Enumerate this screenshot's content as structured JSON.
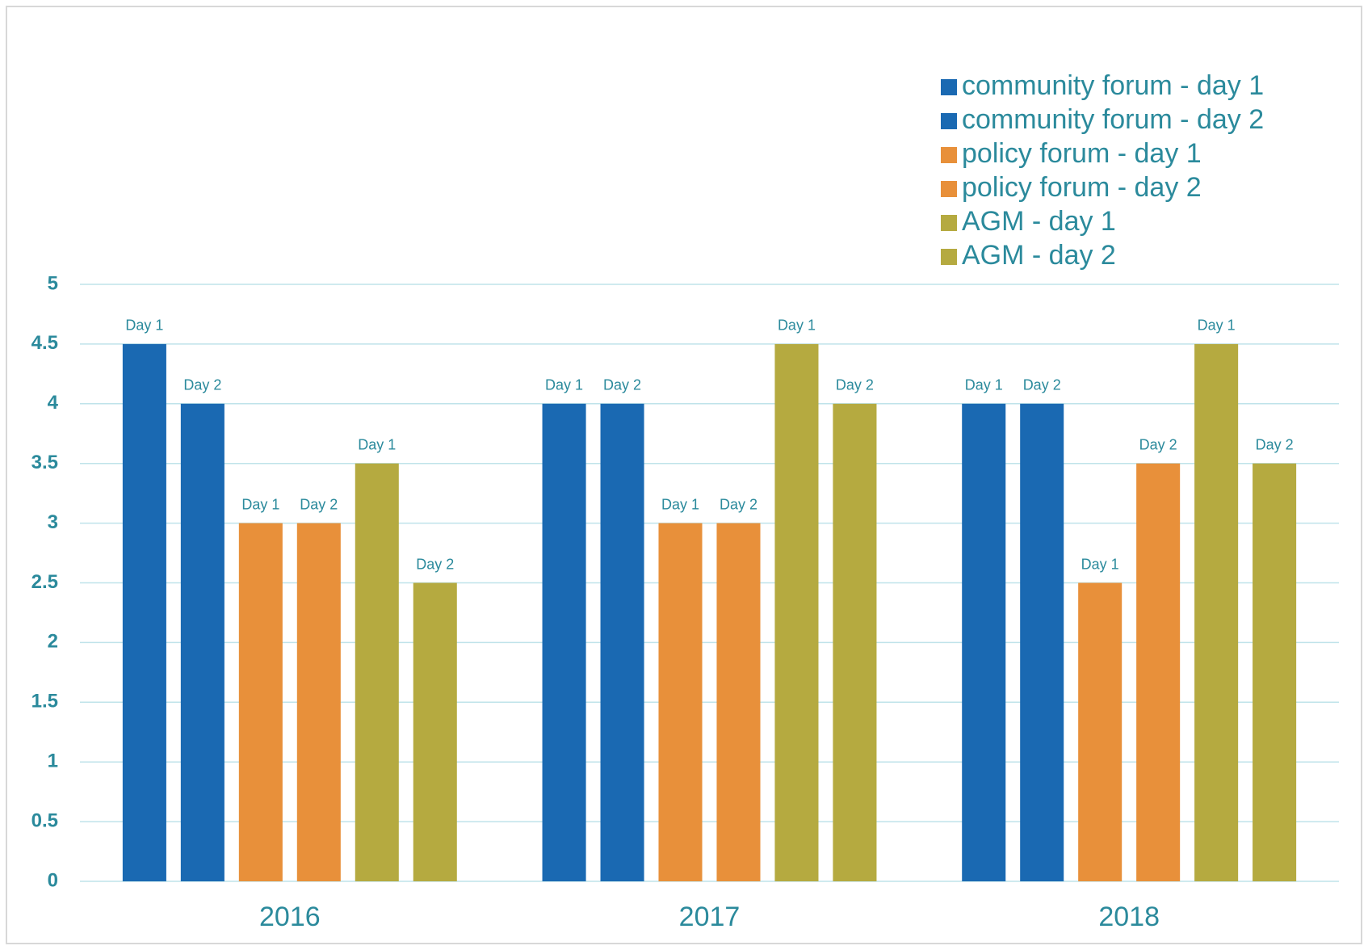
{
  "chart_data": {
    "type": "bar",
    "categories": [
      "2016",
      "2017",
      "2018"
    ],
    "series": [
      {
        "name": "community forum - day 1",
        "color": "#1a69b2",
        "values": [
          4.5,
          4,
          4
        ],
        "labels": [
          "Day 1",
          "Day 1",
          "Day 1"
        ]
      },
      {
        "name": "community forum - day 2",
        "color": "#1a69b2",
        "values": [
          4,
          4,
          4
        ],
        "labels": [
          "Day 2",
          "Day 2",
          "Day 2"
        ]
      },
      {
        "name": "policy forum - day 1",
        "color": "#e8903a",
        "values": [
          3,
          3,
          2.5
        ],
        "labels": [
          "Day 1",
          "Day 1",
          "Day 1"
        ]
      },
      {
        "name": "policy forum - day 2",
        "color": "#e8903a",
        "values": [
          3,
          3,
          3.5
        ],
        "labels": [
          "Day 2",
          "Day 2",
          "Day 2"
        ]
      },
      {
        "name": "AGM - day 1",
        "color": "#b5aa40",
        "values": [
          3.5,
          4.5,
          4.5
        ],
        "labels": [
          "Day 1",
          "Day 1",
          "Day 1"
        ]
      },
      {
        "name": "AGM - day 2",
        "color": "#b5aa40",
        "values": [
          2.5,
          4,
          3.5
        ],
        "labels": [
          "Day 2",
          "Day 2",
          "Day 2"
        ]
      }
    ],
    "ylim": [
      0,
      5
    ],
    "yticks": [
      0,
      0.5,
      1,
      1.5,
      2,
      2.5,
      3,
      3.5,
      4,
      4.5,
      5
    ],
    "grid": true,
    "legend": "top-right"
  }
}
